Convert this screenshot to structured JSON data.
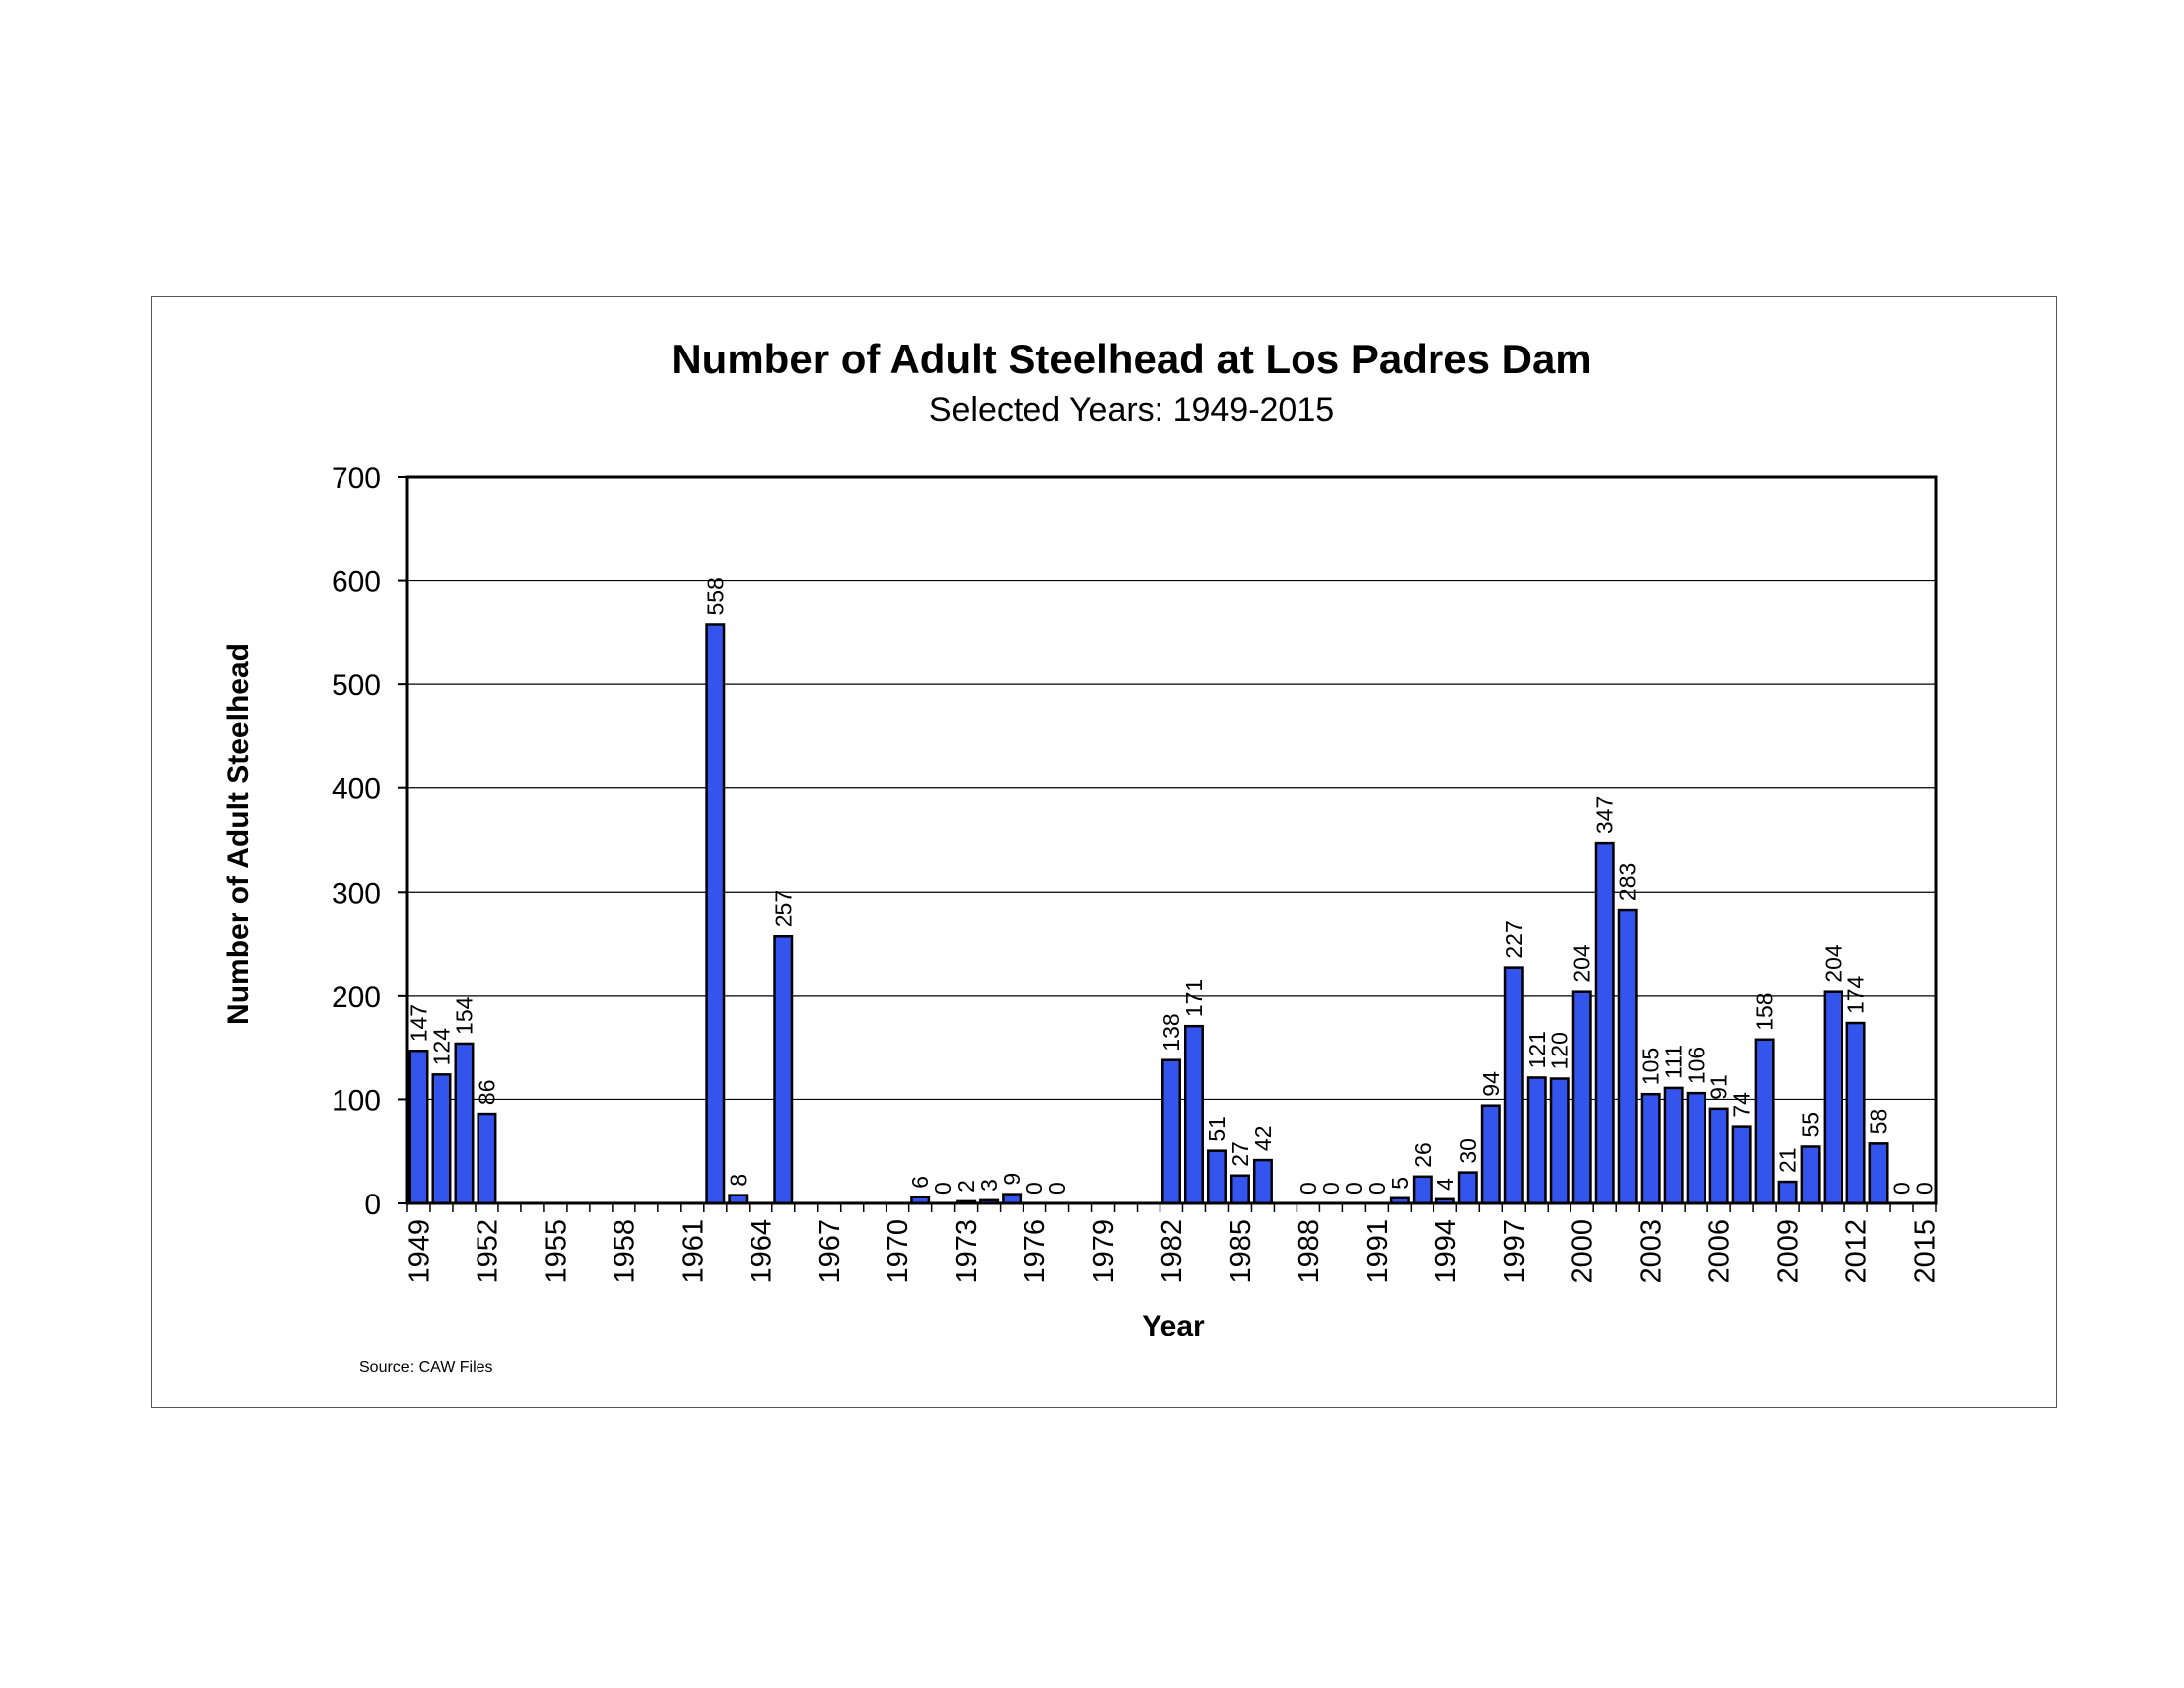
{
  "chart_data": {
    "type": "bar",
    "title": "Number of Adult Steelhead at Los Padres Dam",
    "subtitle": "Selected Years: 1949-2015",
    "xlabel": "Year",
    "ylabel": "Number of Adult Steelhead",
    "source": "Source: CAW Files",
    "ylim": [
      0,
      700
    ],
    "yticks": [
      0,
      100,
      200,
      300,
      400,
      500,
      600,
      700
    ],
    "xtick_labels": [
      "1949",
      "1952",
      "1955",
      "1958",
      "1961",
      "1964",
      "1967",
      "1970",
      "1973",
      "1976",
      "1979",
      "1982",
      "1985",
      "1988",
      "1991",
      "1994",
      "1997",
      "2000",
      "2003",
      "2006",
      "2009",
      "2012",
      "2015"
    ],
    "grid": true,
    "bar_color": "#3355ee",
    "values": [
      {
        "year": 1949,
        "value": 147,
        "label": "147"
      },
      {
        "year": 1950,
        "value": 124,
        "label": "124"
      },
      {
        "year": 1951,
        "value": 154,
        "label": "154"
      },
      {
        "year": 1952,
        "value": 86,
        "label": "86"
      },
      {
        "year": 1962,
        "value": 558,
        "label": "558"
      },
      {
        "year": 1963,
        "value": 8,
        "label": "8"
      },
      {
        "year": 1965,
        "value": 257,
        "label": "257"
      },
      {
        "year": 1971,
        "value": 6,
        "label": "6"
      },
      {
        "year": 1972,
        "value": 0,
        "label": "0"
      },
      {
        "year": 1973,
        "value": 2,
        "label": "2"
      },
      {
        "year": 1974,
        "value": 3,
        "label": "3"
      },
      {
        "year": 1975,
        "value": 9,
        "label": "9"
      },
      {
        "year": 1976,
        "value": 0,
        "label": "0"
      },
      {
        "year": 1977,
        "value": 0,
        "label": "0"
      },
      {
        "year": 1982,
        "value": 138,
        "label": "138"
      },
      {
        "year": 1983,
        "value": 171,
        "label": "171"
      },
      {
        "year": 1984,
        "value": 51,
        "label": "51"
      },
      {
        "year": 1985,
        "value": 27,
        "label": "27"
      },
      {
        "year": 1986,
        "value": 42,
        "label": "42"
      },
      {
        "year": 1988,
        "value": 0,
        "label": "0"
      },
      {
        "year": 1989,
        "value": 0,
        "label": "0"
      },
      {
        "year": 1990,
        "value": 0,
        "label": "0"
      },
      {
        "year": 1991,
        "value": 0,
        "label": "0"
      },
      {
        "year": 1992,
        "value": 5,
        "label": "5"
      },
      {
        "year": 1993,
        "value": 26,
        "label": "26"
      },
      {
        "year": 1994,
        "value": 4,
        "label": "4"
      },
      {
        "year": 1995,
        "value": 30,
        "label": "30"
      },
      {
        "year": 1996,
        "value": 94,
        "label": "94"
      },
      {
        "year": 1997,
        "value": 227,
        "label": "227"
      },
      {
        "year": 1998,
        "value": 121,
        "label": "121"
      },
      {
        "year": 1999,
        "value": 120,
        "label": "120"
      },
      {
        "year": 2000,
        "value": 204,
        "label": "204"
      },
      {
        "year": 2001,
        "value": 347,
        "label": "347"
      },
      {
        "year": 2002,
        "value": 283,
        "label": "283"
      },
      {
        "year": 2003,
        "value": 105,
        "label": "105"
      },
      {
        "year": 2004,
        "value": 111,
        "label": "111"
      },
      {
        "year": 2005,
        "value": 106,
        "label": "106"
      },
      {
        "year": 2006,
        "value": 91,
        "label": "91"
      },
      {
        "year": 2007,
        "value": 74,
        "label": "74"
      },
      {
        "year": 2008,
        "value": 158,
        "label": "158"
      },
      {
        "year": 2009,
        "value": 21,
        "label": "21"
      },
      {
        "year": 2010,
        "value": 55,
        "label": "55"
      },
      {
        "year": 2011,
        "value": 204,
        "label": "204"
      },
      {
        "year": 2012,
        "value": 174,
        "label": "174"
      },
      {
        "year": 2013,
        "value": 58,
        "label": "58"
      },
      {
        "year": 2014,
        "value": 0,
        "label": "0"
      },
      {
        "year": 2015,
        "value": 0,
        "label": "0"
      }
    ]
  }
}
